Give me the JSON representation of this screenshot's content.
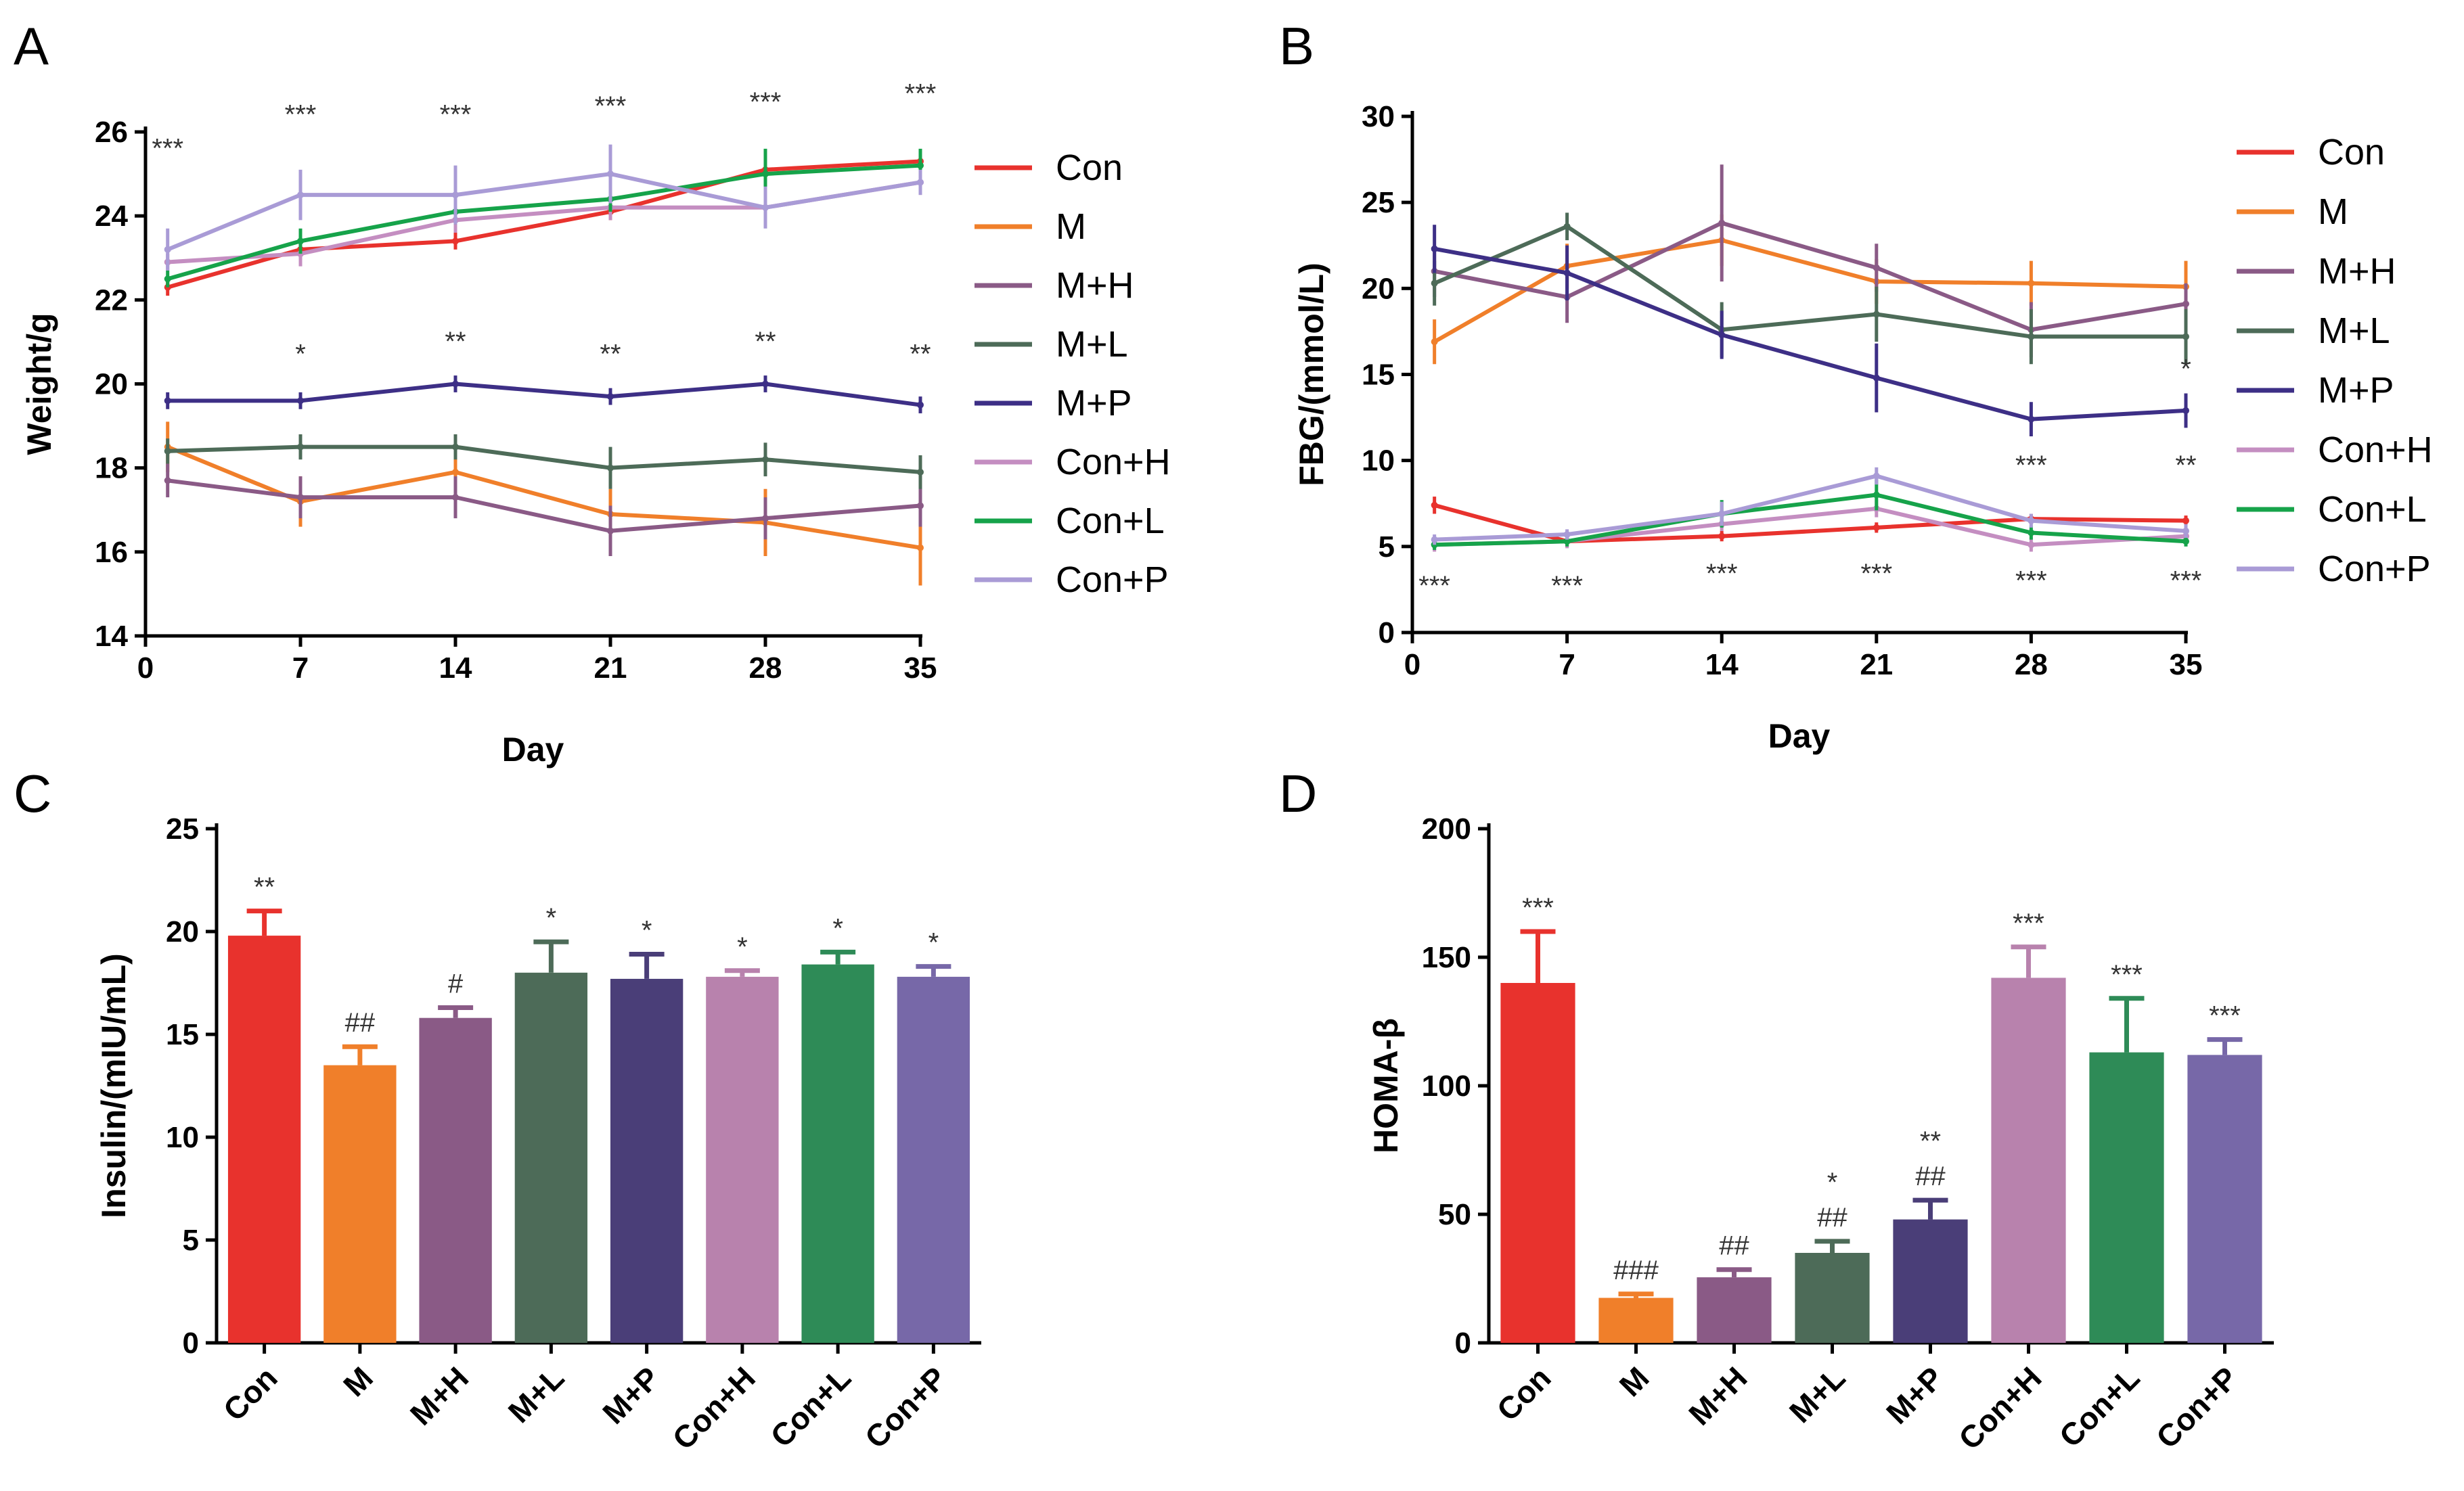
{
  "chart_data": [
    {
      "panel": "A",
      "type": "line",
      "xlabel": "Day",
      "ylabel": "Weight/g",
      "xlim": [
        0,
        35
      ],
      "ylim": [
        14,
        26
      ],
      "xticks": [
        0,
        7,
        14,
        21,
        28,
        35
      ],
      "yticks": [
        14,
        16,
        18,
        20,
        22,
        24,
        26
      ],
      "legend_position": "right",
      "x": [
        1,
        7,
        14,
        21,
        28,
        35
      ],
      "series": [
        {
          "name": "Con",
          "color": "#e8322d",
          "values": [
            22.3,
            23.2,
            23.4,
            24.1,
            25.1,
            25.3
          ],
          "errors": [
            0.2,
            0.2,
            0.2,
            0.2,
            0.2,
            0.2
          ]
        },
        {
          "name": "M",
          "color": "#f07f2a",
          "values": [
            18.5,
            17.2,
            17.9,
            16.9,
            16.7,
            16.1
          ],
          "errors": [
            0.6,
            0.6,
            0.5,
            0.6,
            0.8,
            0.9
          ]
        },
        {
          "name": "M+H",
          "color": "#8a5a86",
          "values": [
            17.7,
            17.3,
            17.3,
            16.5,
            16.8,
            17.1
          ],
          "errors": [
            0.4,
            0.5,
            0.5,
            0.6,
            0.5,
            0.5
          ]
        },
        {
          "name": "M+L",
          "color": "#4d6b58",
          "values": [
            18.4,
            18.5,
            18.5,
            18.0,
            18.2,
            17.9
          ],
          "errors": [
            0.3,
            0.3,
            0.3,
            0.5,
            0.4,
            0.4
          ]
        },
        {
          "name": "M+P",
          "color": "#3d2f86",
          "values": [
            19.6,
            19.6,
            20.0,
            19.7,
            20.0,
            19.5
          ],
          "errors": [
            0.2,
            0.2,
            0.2,
            0.2,
            0.2,
            0.2
          ]
        },
        {
          "name": "Con+H",
          "color": "#c48ec1",
          "values": [
            22.9,
            23.1,
            23.9,
            24.2,
            24.2,
            24.8
          ],
          "errors": [
            0.2,
            0.3,
            0.3,
            0.3,
            0.3,
            0.3
          ]
        },
        {
          "name": "Con+L",
          "color": "#16a34a",
          "values": [
            22.5,
            23.4,
            24.1,
            24.4,
            25.0,
            25.2
          ],
          "errors": [
            0.2,
            0.3,
            0.3,
            0.3,
            0.6,
            0.4
          ]
        },
        {
          "name": "Con+P",
          "color": "#a99bd6",
          "values": [
            23.2,
            24.5,
            24.5,
            25.0,
            24.2,
            24.8
          ],
          "errors": [
            0.5,
            0.6,
            0.7,
            0.7,
            0.5,
            0.3
          ]
        }
      ],
      "annotations": [
        {
          "label": "***",
          "x": 1,
          "y": 25.4
        },
        {
          "label": "***",
          "x": 7,
          "y": 26.2
        },
        {
          "label": "***",
          "x": 14,
          "y": 26.2
        },
        {
          "label": "***",
          "x": 21,
          "y": 26.4
        },
        {
          "label": "***",
          "x": 28,
          "y": 26.5
        },
        {
          "label": "***",
          "x": 35,
          "y": 26.7
        },
        {
          "label": "*",
          "x": 7,
          "y": 20.5
        },
        {
          "label": "**",
          "x": 14,
          "y": 20.8
        },
        {
          "label": "**",
          "x": 21,
          "y": 20.5
        },
        {
          "label": "**",
          "x": 28,
          "y": 20.8
        },
        {
          "label": "**",
          "x": 35,
          "y": 20.5
        }
      ]
    },
    {
      "panel": "B",
      "type": "line",
      "xlabel": "Day",
      "ylabel": "FBG/(mmol/L)",
      "xlim": [
        0,
        35
      ],
      "ylim": [
        0,
        30
      ],
      "xticks": [
        0,
        7,
        14,
        21,
        28,
        35
      ],
      "yticks": [
        0,
        5,
        10,
        15,
        20,
        25,
        30
      ],
      "legend_position": "right",
      "x": [
        1,
        7,
        14,
        21,
        28,
        35
      ],
      "series": [
        {
          "name": "Con",
          "color": "#e8322d",
          "values": [
            7.4,
            5.3,
            5.6,
            6.1,
            6.6,
            6.5
          ],
          "errors": [
            0.5,
            0.3,
            0.3,
            0.3,
            0.3,
            0.3
          ]
        },
        {
          "name": "M",
          "color": "#f07f2a",
          "values": [
            16.9,
            21.3,
            22.8,
            20.4,
            20.3,
            20.1
          ],
          "errors": [
            1.3,
            1.3,
            1.5,
            1.3,
            1.3,
            1.5
          ]
        },
        {
          "name": "M+H",
          "color": "#8a5a86",
          "values": [
            21.0,
            19.5,
            23.8,
            21.2,
            17.6,
            19.1
          ],
          "errors": [
            1.5,
            1.5,
            3.4,
            1.4,
            1.6,
            1.2
          ]
        },
        {
          "name": "M+L",
          "color": "#4d6b58",
          "values": [
            20.3,
            23.6,
            17.6,
            18.5,
            17.2,
            17.2
          ],
          "errors": [
            1.3,
            0.8,
            1.6,
            1.6,
            1.6,
            1.6
          ]
        },
        {
          "name": "M+P",
          "color": "#3d2f86",
          "values": [
            22.3,
            20.9,
            17.3,
            14.8,
            12.4,
            12.9
          ],
          "errors": [
            1.4,
            1.6,
            1.4,
            2.0,
            1.0,
            1.0
          ]
        },
        {
          "name": "Con+H",
          "color": "#c48ec1",
          "values": [
            5.1,
            5.3,
            6.3,
            7.2,
            5.1,
            5.6
          ],
          "errors": [
            0.4,
            0.4,
            0.4,
            0.5,
            0.4,
            0.4
          ]
        },
        {
          "name": "Con+L",
          "color": "#16a34a",
          "values": [
            5.1,
            5.3,
            6.9,
            8.0,
            5.8,
            5.3
          ],
          "errors": [
            0.3,
            0.3,
            0.8,
            0.9,
            0.4,
            0.3
          ]
        },
        {
          "name": "Con+P",
          "color": "#a99bd6",
          "values": [
            5.4,
            5.7,
            6.9,
            9.1,
            6.5,
            5.9
          ],
          "errors": [
            0.3,
            0.3,
            0.7,
            0.5,
            0.4,
            0.4
          ]
        }
      ],
      "annotations": [
        {
          "label": "***",
          "x": 1,
          "y": 2.2
        },
        {
          "label": "***",
          "x": 7,
          "y": 2.2
        },
        {
          "label": "***",
          "x": 14,
          "y": 2.9
        },
        {
          "label": "***",
          "x": 21,
          "y": 2.9
        },
        {
          "label": "***",
          "x": 28,
          "y": 2.5
        },
        {
          "label": "***",
          "x": 35,
          "y": 2.5
        },
        {
          "label": "***",
          "x": 28,
          "y": 9.2
        },
        {
          "label": "**",
          "x": 35,
          "y": 9.2
        },
        {
          "label": "*",
          "x": 35,
          "y": 14.8
        }
      ]
    },
    {
      "panel": "C",
      "type": "bar",
      "xlabel": "",
      "ylabel": "Insulin/(mIU/mL)",
      "ylim": [
        0,
        25
      ],
      "yticks": [
        0,
        5,
        10,
        15,
        20,
        25
      ],
      "categories": [
        "Con",
        "M",
        "M+H",
        "M+L",
        "M+P",
        "Con+H",
        "Con+L",
        "Con+P"
      ],
      "values": [
        19.8,
        13.5,
        15.8,
        18.0,
        17.7,
        17.8,
        18.4,
        17.8
      ],
      "errors": [
        1.2,
        0.9,
        0.5,
        1.5,
        1.2,
        0.3,
        0.6,
        0.5
      ],
      "colors": [
        "#e8322d",
        "#f07f2a",
        "#8a5a86",
        "#4d6b58",
        "#4a3e78",
        "#b882ad",
        "#2e8b57",
        "#7768a8"
      ],
      "labels": [
        [
          "**"
        ],
        [
          "##"
        ],
        [
          "#"
        ],
        [
          "*"
        ],
        [
          "*"
        ],
        [
          "*"
        ],
        [
          "*"
        ],
        [
          "*"
        ]
      ]
    },
    {
      "panel": "D",
      "type": "bar",
      "xlabel": "",
      "ylabel": "HOMA-β",
      "ylim": [
        0,
        200
      ],
      "yticks": [
        0,
        50,
        100,
        150,
        200
      ],
      "categories": [
        "Con",
        "M",
        "M+H",
        "M+L",
        "M+P",
        "Con+H",
        "Con+L",
        "Con+P"
      ],
      "values": [
        140,
        17.5,
        25.5,
        35,
        48,
        142,
        113,
        112
      ],
      "errors": [
        20,
        1.5,
        3,
        4.5,
        7.5,
        12,
        21,
        6
      ],
      "colors": [
        "#e8322d",
        "#f07f2a",
        "#8a5a86",
        "#4d6b58",
        "#4a3e78",
        "#b882ad",
        "#2e8b57",
        "#7768a8"
      ],
      "labels": [
        [
          "***"
        ],
        [
          "###"
        ],
        [
          "##"
        ],
        [
          "*",
          "##"
        ],
        [
          "**",
          "##"
        ],
        [
          "***"
        ],
        [
          "***"
        ],
        [
          "***"
        ]
      ]
    }
  ]
}
